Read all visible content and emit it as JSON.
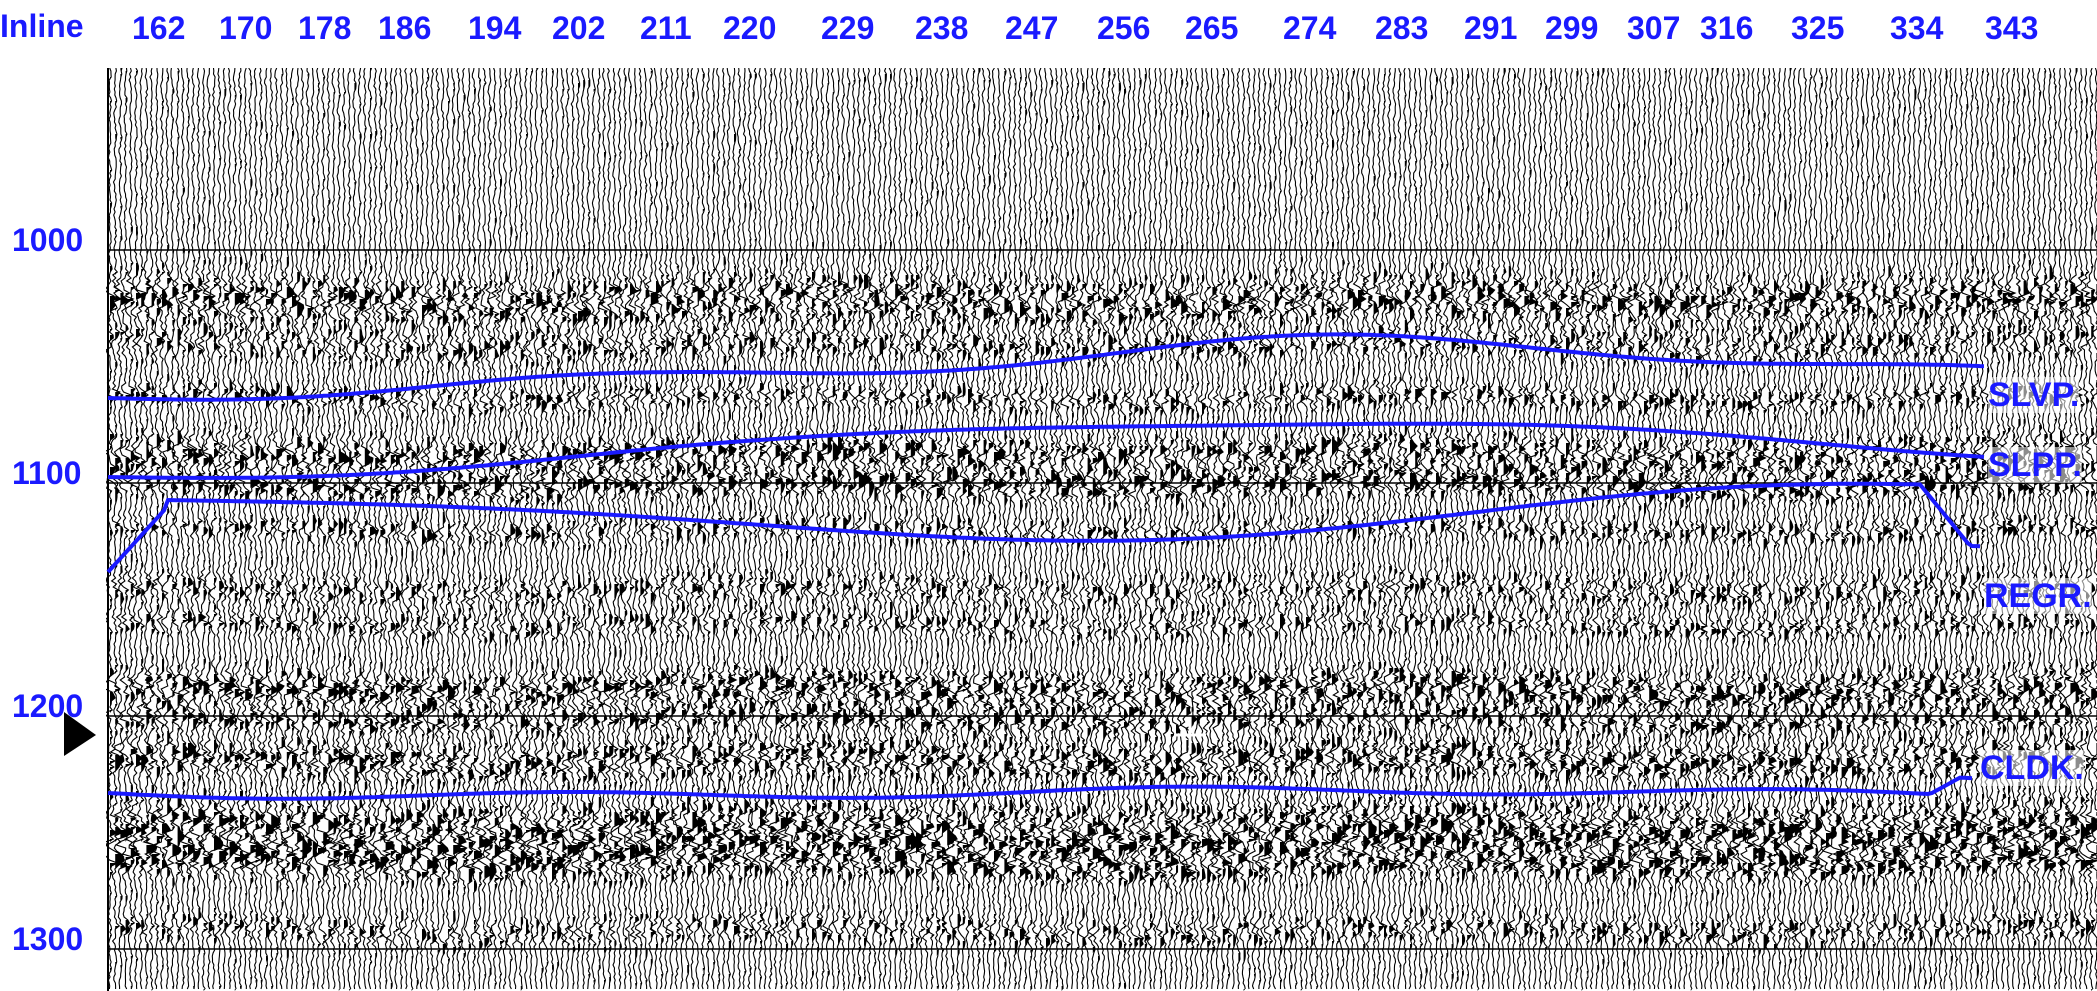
{
  "axis": {
    "label": "Inline",
    "inline_ticks": [
      "162",
      "170",
      "178",
      "186",
      "194",
      "202",
      "211",
      "220",
      "229",
      "238",
      "247",
      "256",
      "265",
      "274",
      "283",
      "291",
      "299",
      "307",
      "316",
      "325",
      "334",
      "343"
    ],
    "time_ticks": [
      "1000",
      "1100",
      "1200",
      "1300"
    ],
    "label_color": "#1a1aff"
  },
  "horizons": [
    {
      "name": "SLVP.",
      "color": "#1a1aff"
    },
    {
      "name": "SLPP.",
      "color": "#1a1aff"
    },
    {
      "name": "REGR.",
      "color": "#1a1aff"
    },
    {
      "name": "CLDK.",
      "color": "#1a1aff"
    }
  ],
  "markers": {
    "inline_marker_icon": "down-triangle-icon",
    "time_marker_icon": "right-triangle-icon",
    "cursor_icon": "crosshair-icon"
  },
  "colors": {
    "trace_fill": "#000000",
    "background": "#ffffff",
    "horizon": "#1a1aff",
    "axis_text": "#1a1aff"
  }
}
